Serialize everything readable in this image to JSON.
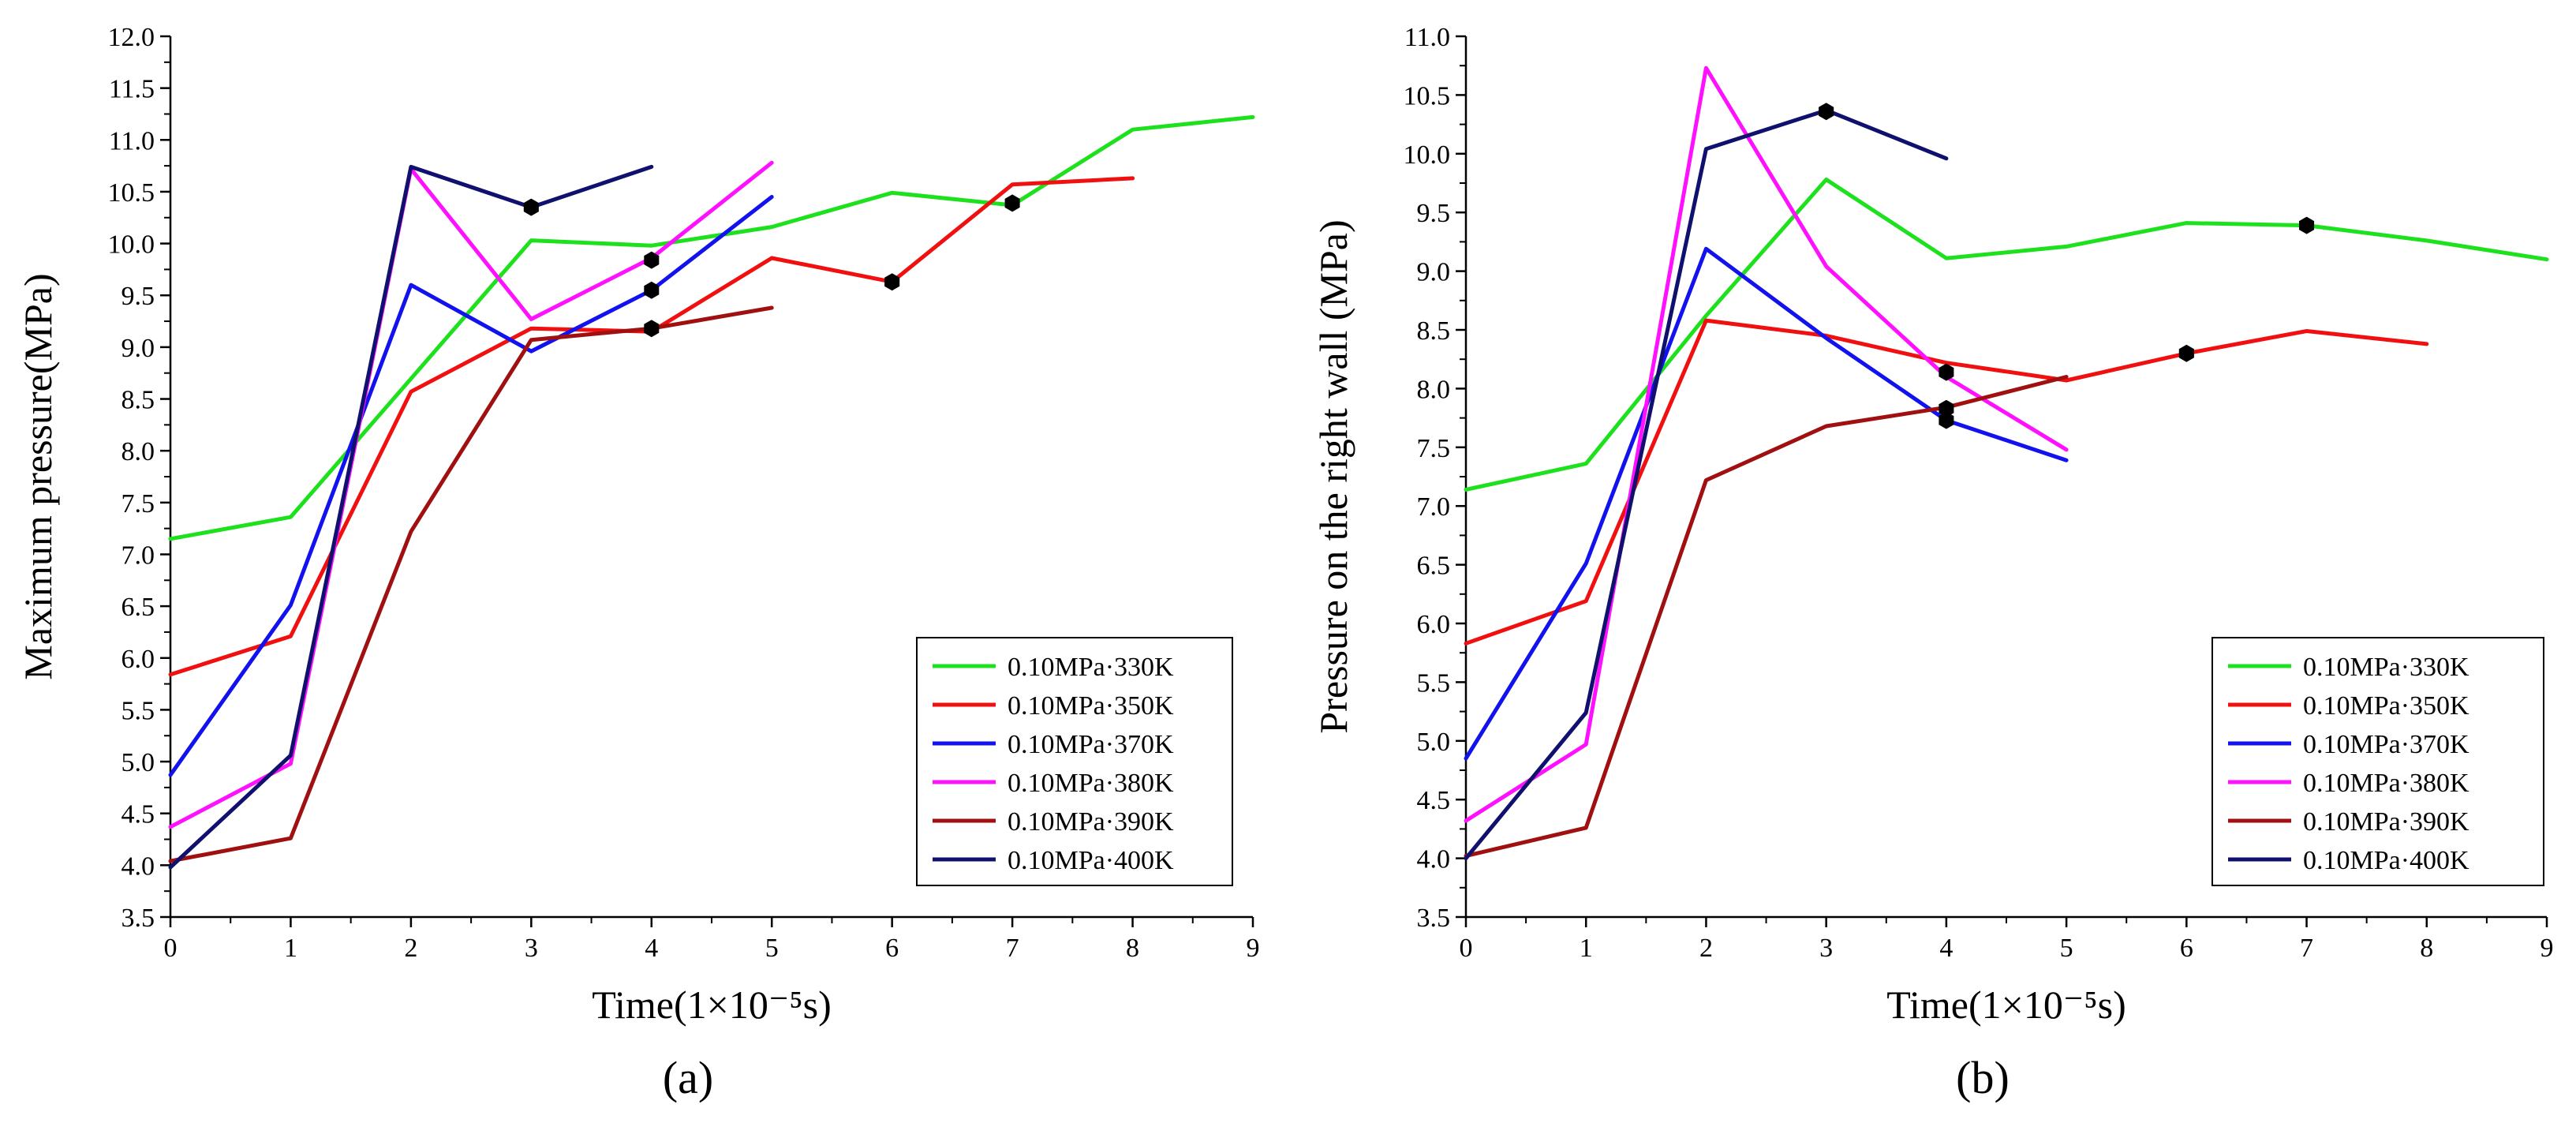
{
  "series_meta": [
    {
      "name": "0.10MPa·330K",
      "color": "#1ee11e"
    },
    {
      "name": "0.10MPa·350K",
      "color": "#f01010"
    },
    {
      "name": "0.10MPa·370K",
      "color": "#1212ee"
    },
    {
      "name": "0.10MPa·380K",
      "color": "#ff10ff"
    },
    {
      "name": "0.10MPa·390K",
      "color": "#a01010"
    },
    {
      "name": "0.10MPa·400K",
      "color": "#10106e"
    }
  ],
  "chart_data": [
    {
      "type": "line",
      "panel_label": "(a)",
      "xlabel": "Time(1×10⁻⁵s)",
      "ylabel": "Maximum pressure(MPa)",
      "xlim": [
        0,
        9
      ],
      "ylim": [
        3.5,
        12.0
      ],
      "x_ticks": [
        "0",
        "1",
        "2",
        "3",
        "4",
        "5",
        "6",
        "7",
        "8",
        "9"
      ],
      "y_ticks": [
        "3.5",
        "4.0",
        "4.5",
        "5.0",
        "5.5",
        "6.0",
        "6.5",
        "7.0",
        "7.5",
        "8.0",
        "8.5",
        "9.0",
        "9.5",
        "10.0",
        "10.5",
        "11.0",
        "11.5",
        "12.0"
      ],
      "legend": "lower-right",
      "series": [
        {
          "name": "0.10MPa·330K",
          "x": [
            0,
            1,
            3,
            4,
            5,
            6,
            7,
            8,
            9
          ],
          "values": [
            7.15,
            7.36,
            10.03,
            9.98,
            10.16,
            10.49,
            10.37,
            11.1,
            11.22
          ]
        },
        {
          "name": "0.10MPa·350K",
          "x": [
            0,
            1,
            2,
            3,
            4,
            5,
            6,
            7,
            8
          ],
          "values": [
            5.84,
            6.21,
            8.57,
            9.18,
            9.15,
            9.86,
            9.63,
            10.57,
            10.63
          ]
        },
        {
          "name": "0.10MPa·370K",
          "x": [
            0,
            1,
            2,
            3,
            4,
            5
          ],
          "values": [
            4.87,
            6.51,
            9.6,
            8.96,
            9.55,
            10.45
          ]
        },
        {
          "name": "0.10MPa·380K",
          "x": [
            0,
            1,
            2,
            3,
            4,
            5
          ],
          "values": [
            4.37,
            4.98,
            10.72,
            9.27,
            9.86,
            10.78
          ]
        },
        {
          "name": "0.10MPa·390K",
          "x": [
            0,
            1,
            2,
            3,
            4,
            5
          ],
          "values": [
            4.04,
            4.26,
            7.22,
            9.07,
            9.18,
            9.38
          ]
        },
        {
          "name": "0.10MPa·400K",
          "x": [
            0,
            1,
            2,
            3,
            4
          ],
          "values": [
            3.98,
            5.06,
            10.74,
            10.35,
            10.74
          ]
        }
      ],
      "markers": [
        {
          "x": 3,
          "y": 10.35
        },
        {
          "x": 4,
          "y": 9.84
        },
        {
          "x": 4,
          "y": 9.55
        },
        {
          "x": 4,
          "y": 9.18
        },
        {
          "x": 6,
          "y": 9.63
        },
        {
          "x": 7,
          "y": 10.39
        }
      ]
    },
    {
      "type": "line",
      "panel_label": "(b)",
      "xlabel": "Time(1×10⁻⁵s)",
      "ylabel": "Pressure on the right wall (MPa)",
      "xlim": [
        0,
        9
      ],
      "ylim": [
        3.5,
        11.0
      ],
      "x_ticks": [
        "0",
        "1",
        "2",
        "3",
        "4",
        "5",
        "6",
        "7",
        "8",
        "9"
      ],
      "y_ticks": [
        "3.5",
        "4.0",
        "4.5",
        "5.0",
        "5.5",
        "6.0",
        "6.5",
        "7.0",
        "7.5",
        "8.0",
        "8.5",
        "9.0",
        "9.5",
        "10.0",
        "10.5",
        "11.0"
      ],
      "legend": "lower-right",
      "series": [
        {
          "name": "0.10MPa·330K",
          "x": [
            0,
            1,
            2,
            3,
            4,
            5,
            6,
            7,
            8,
            9
          ],
          "values": [
            7.14,
            7.36,
            8.62,
            9.78,
            9.11,
            9.21,
            9.41,
            9.39,
            9.26,
            9.1
          ]
        },
        {
          "name": "0.10MPa·350K",
          "x": [
            0,
            1,
            2,
            3,
            4,
            5,
            6,
            7,
            8
          ],
          "values": [
            5.83,
            6.19,
            8.58,
            8.45,
            8.22,
            8.07,
            8.3,
            8.49,
            8.38
          ]
        },
        {
          "name": "0.10MPa·370K",
          "x": [
            0,
            1,
            2,
            3,
            4,
            5
          ],
          "values": [
            4.85,
            6.51,
            9.19,
            8.43,
            7.73,
            7.39
          ]
        },
        {
          "name": "0.10MPa·380K",
          "x": [
            0,
            1,
            2,
            3,
            4,
            5
          ],
          "values": [
            4.32,
            4.97,
            10.73,
            9.04,
            8.1,
            7.48
          ]
        },
        {
          "name": "0.10MPa·390K",
          "x": [
            0,
            1,
            2,
            3,
            4,
            5
          ],
          "values": [
            4.02,
            4.26,
            7.22,
            7.68,
            7.84,
            8.1
          ]
        },
        {
          "name": "0.10MPa·400K",
          "x": [
            0,
            1,
            2,
            3,
            4
          ],
          "values": [
            4.0,
            5.24,
            10.04,
            10.37,
            9.96
          ]
        }
      ],
      "markers": [
        {
          "x": 3,
          "y": 10.36
        },
        {
          "x": 4,
          "y": 8.14
        },
        {
          "x": 4,
          "y": 7.83
        },
        {
          "x": 4,
          "y": 7.73
        },
        {
          "x": 6,
          "y": 8.3
        },
        {
          "x": 7,
          "y": 9.39
        }
      ]
    }
  ]
}
